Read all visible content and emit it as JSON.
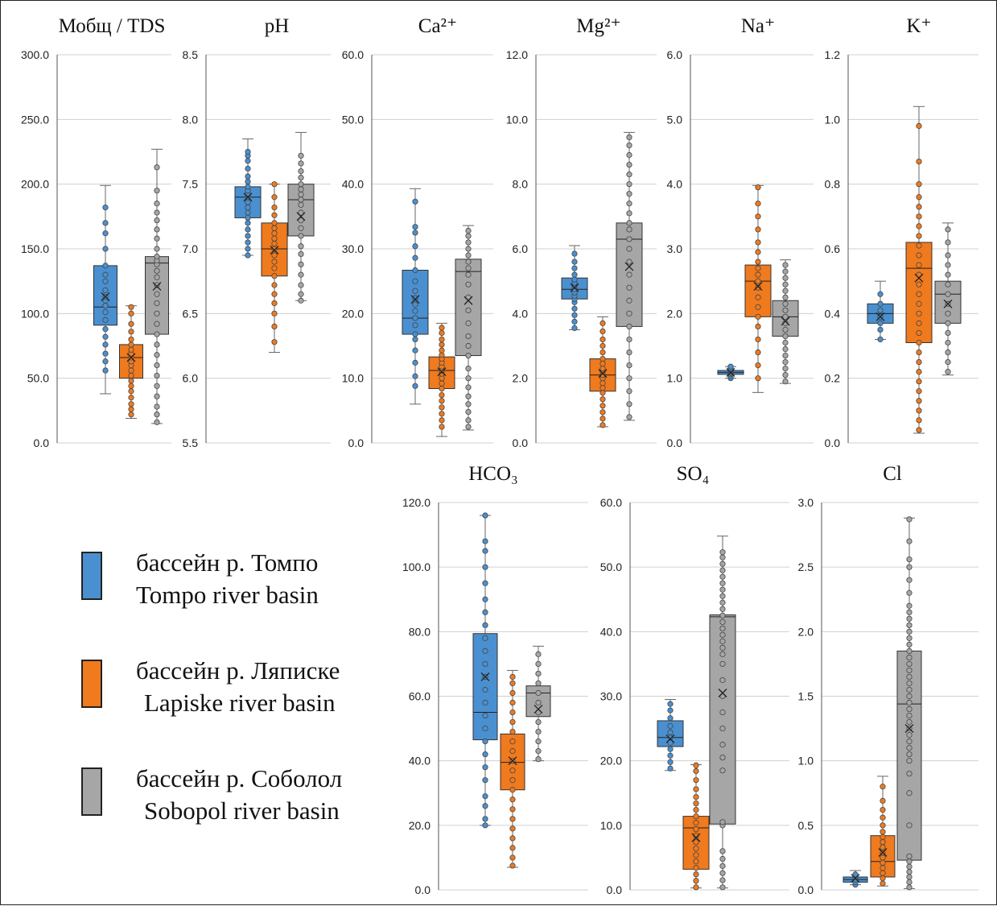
{
  "colors": {
    "tompo": "#4a90d0",
    "lapiske": "#f07a1e",
    "sobopol": "#a6a6a6"
  },
  "legend": [
    {
      "key": "tompo",
      "ru": "бассейн р. Томпо",
      "en": "Tompo river basin"
    },
    {
      "key": "lapiske",
      "ru": "бассейн р. Ляписке",
      "en": "Lapiske river basin"
    },
    {
      "key": "sobopol",
      "ru": "бассейн р. Соболол",
      "en": "Sobopol river basin"
    }
  ],
  "chart_data": [
    {
      "type": "box",
      "title": "Мобщ / TDS",
      "ylim": [
        0,
        300
      ],
      "ticks": [
        "0.0",
        "50.0",
        "100.0",
        "150.0",
        "200.0",
        "250.0",
        "300.0"
      ],
      "series": [
        {
          "key": "tompo",
          "min": 38,
          "q1": 91,
          "median": 105,
          "q3": 137,
          "max": 199,
          "mean": 113,
          "points": [
            56,
            63,
            69,
            76,
            82,
            88,
            95,
            101,
            106,
            110,
            113,
            118,
            125,
            130,
            137,
            150,
            162,
            170,
            182
          ]
        },
        {
          "key": "lapiske",
          "min": 19,
          "q1": 50,
          "median": 66,
          "q3": 76,
          "max": 106,
          "mean": 66,
          "points": [
            22,
            26,
            30,
            35,
            40,
            44,
            48,
            52,
            56,
            60,
            63,
            66,
            69,
            72,
            76,
            80,
            86,
            92,
            100,
            105
          ]
        },
        {
          "key": "sobopol",
          "min": 15,
          "q1": 84,
          "median": 139,
          "q3": 144,
          "max": 227,
          "mean": 121,
          "points": [
            16,
            22,
            28,
            36,
            44,
            52,
            60,
            68,
            76,
            84,
            92,
            100,
            108,
            115,
            122,
            128,
            133,
            138,
            141,
            144,
            150,
            158,
            165,
            172,
            178,
            185,
            195,
            213
          ]
        }
      ]
    },
    {
      "type": "box",
      "title": "pH",
      "ylim": [
        5.5,
        8.5
      ],
      "ticks": [
        "5.5",
        "6.0",
        "6.5",
        "7.0",
        "7.5",
        "8.0",
        "8.5"
      ],
      "series": [
        {
          "key": "tompo",
          "min": 6.95,
          "q1": 7.24,
          "median": 7.4,
          "q3": 7.48,
          "max": 7.85,
          "mean": 7.4,
          "points": [
            6.95,
            7.0,
            7.05,
            7.1,
            7.15,
            7.2,
            7.24,
            7.28,
            7.32,
            7.36,
            7.4,
            7.42,
            7.45,
            7.48,
            7.52,
            7.56,
            7.62,
            7.68,
            7.72,
            7.75
          ]
        },
        {
          "key": "lapiske",
          "min": 6.2,
          "q1": 6.79,
          "median": 7.0,
          "q3": 7.2,
          "max": 7.5,
          "mean": 6.99,
          "points": [
            6.28,
            6.4,
            6.5,
            6.58,
            6.65,
            6.72,
            6.79,
            6.85,
            6.9,
            6.95,
            7.0,
            7.04,
            7.08,
            7.12,
            7.16,
            7.2,
            7.26,
            7.32,
            7.4,
            7.5
          ]
        },
        {
          "key": "sobopol",
          "min": 6.6,
          "q1": 7.1,
          "median": 7.38,
          "q3": 7.5,
          "max": 7.9,
          "mean": 7.25,
          "points": [
            6.6,
            6.65,
            6.72,
            6.8,
            6.88,
            6.96,
            7.02,
            7.1,
            7.16,
            7.22,
            7.28,
            7.34,
            7.38,
            7.42,
            7.46,
            7.5,
            7.55,
            7.6,
            7.66,
            7.72
          ]
        }
      ]
    },
    {
      "type": "box",
      "title": "Ca²⁺",
      "ylim": [
        0,
        60
      ],
      "ticks": [
        "0.0",
        "10.0",
        "20.0",
        "30.0",
        "40.0",
        "50.0",
        "60.0"
      ],
      "series": [
        {
          "key": "tompo",
          "min": 6,
          "q1": 16.8,
          "median": 19.3,
          "q3": 26.7,
          "max": 39.3,
          "mean": 22.2,
          "points": [
            8.8,
            10.3,
            12.4,
            14.3,
            16.0,
            16.8,
            18.2,
            19.3,
            20.4,
            21.4,
            22.4,
            23.5,
            25.0,
            26.7,
            28.6,
            30.4,
            32.5,
            33.4,
            37.3
          ]
        },
        {
          "key": "lapiske",
          "min": 1,
          "q1": 8.4,
          "median": 11.2,
          "q3": 13.3,
          "max": 18.5,
          "mean": 11.0,
          "points": [
            2.5,
            3.5,
            4.5,
            5.5,
            6.5,
            7.4,
            8.4,
            9.2,
            10.0,
            10.7,
            11.2,
            11.8,
            12.4,
            13.0,
            13.6,
            14.3,
            15.2,
            16.0,
            17.0,
            17.8
          ]
        },
        {
          "key": "sobopol",
          "min": 2,
          "q1": 13.5,
          "median": 26.5,
          "q3": 28.4,
          "max": 33.6,
          "mean": 22.0,
          "points": [
            2.5,
            3.5,
            4.8,
            6.0,
            7.2,
            8.6,
            10.0,
            11.5,
            13.5,
            15.0,
            16.5,
            18.5,
            20.5,
            22.5,
            24.5,
            26.0,
            27.0,
            28.0,
            29.0,
            30.0,
            31.0,
            32.0,
            32.8
          ]
        }
      ]
    },
    {
      "type": "box",
      "title": "Mg²⁺",
      "ylim": [
        0,
        12
      ],
      "ticks": [
        "0.0",
        "2.0",
        "4.0",
        "6.0",
        "8.0",
        "10.0",
        "12.0"
      ],
      "series": [
        {
          "key": "tompo",
          "min": 3.5,
          "q1": 4.45,
          "median": 4.75,
          "q3": 5.1,
          "max": 6.1,
          "mean": 4.8,
          "points": [
            3.55,
            3.75,
            3.95,
            4.15,
            4.35,
            4.45,
            4.55,
            4.65,
            4.75,
            4.85,
            4.95,
            5.05,
            5.2,
            5.4,
            5.6,
            5.85
          ]
        },
        {
          "key": "lapiske",
          "min": 0.5,
          "q1": 1.6,
          "median": 2.1,
          "q3": 2.6,
          "max": 3.9,
          "mean": 2.15,
          "points": [
            0.55,
            0.75,
            0.95,
            1.15,
            1.35,
            1.55,
            1.7,
            1.85,
            2.0,
            2.1,
            2.2,
            2.3,
            2.45,
            2.6,
            2.8,
            3.0,
            3.2,
            3.45,
            3.7
          ]
        },
        {
          "key": "sobopol",
          "min": 0.7,
          "q1": 3.6,
          "median": 6.3,
          "q3": 6.8,
          "max": 9.6,
          "mean": 5.45,
          "points": [
            0.8,
            1.2,
            1.6,
            2.0,
            2.4,
            2.8,
            3.2,
            3.6,
            4.0,
            4.4,
            4.8,
            5.2,
            5.6,
            6.0,
            6.3,
            6.6,
            6.8,
            7.1,
            7.4,
            7.7,
            8.0,
            8.3,
            8.6,
            8.9,
            9.2,
            9.45
          ]
        }
      ]
    },
    {
      "type": "box",
      "title": "Na⁺",
      "ylim": [
        0,
        6
      ],
      "ticks": [
        "0.0",
        "1.0",
        "2.0",
        "3.0",
        "4.0",
        "5.0",
        "6.0"
      ],
      "series": [
        {
          "key": "tompo",
          "min": 1.0,
          "q1": 1.06,
          "median": 1.09,
          "q3": 1.12,
          "max": 1.18,
          "mean": 1.09,
          "points": [
            1.0,
            1.03,
            1.06,
            1.08,
            1.1,
            1.12,
            1.15,
            1.18
          ]
        },
        {
          "key": "lapiske",
          "min": 0.78,
          "q1": 1.95,
          "median": 2.5,
          "q3": 2.75,
          "max": 3.98,
          "mean": 2.42,
          "points": [
            1.0,
            1.2,
            1.4,
            1.6,
            1.8,
            1.95,
            2.1,
            2.25,
            2.4,
            2.5,
            2.6,
            2.7,
            2.8,
            2.95,
            3.1,
            3.3,
            3.5,
            3.7,
            3.95
          ]
        },
        {
          "key": "sobopol",
          "min": 0.92,
          "q1": 1.65,
          "median": 1.95,
          "q3": 2.2,
          "max": 2.83,
          "mean": 1.88,
          "points": [
            0.95,
            1.05,
            1.15,
            1.25,
            1.35,
            1.45,
            1.55,
            1.65,
            1.75,
            1.85,
            1.95,
            2.05,
            2.15,
            2.25,
            2.35,
            2.45,
            2.55,
            2.65,
            2.75
          ]
        }
      ]
    },
    {
      "type": "box",
      "title": "K⁺",
      "ylim": [
        0,
        1.2
      ],
      "ticks": [
        "0.0",
        "0.2",
        "0.4",
        "0.6",
        "0.8",
        "1.0",
        "1.2"
      ],
      "series": [
        {
          "key": "tompo",
          "min": 0.32,
          "q1": 0.37,
          "median": 0.4,
          "q3": 0.43,
          "max": 0.5,
          "mean": 0.39,
          "points": [
            0.32,
            0.35,
            0.37,
            0.39,
            0.41,
            0.43,
            0.46
          ]
        },
        {
          "key": "lapiske",
          "min": 0.03,
          "q1": 0.31,
          "median": 0.54,
          "q3": 0.62,
          "max": 1.04,
          "mean": 0.51,
          "points": [
            0.04,
            0.07,
            0.1,
            0.13,
            0.16,
            0.19,
            0.22,
            0.25,
            0.28,
            0.31,
            0.34,
            0.37,
            0.4,
            0.43,
            0.46,
            0.49,
            0.52,
            0.55,
            0.58,
            0.61,
            0.64,
            0.67,
            0.7,
            0.73,
            0.76,
            0.8,
            0.87,
            0.98
          ]
        },
        {
          "key": "sobopol",
          "min": 0.21,
          "q1": 0.37,
          "median": 0.46,
          "q3": 0.5,
          "max": 0.68,
          "mean": 0.43,
          "points": [
            0.22,
            0.25,
            0.28,
            0.31,
            0.34,
            0.37,
            0.4,
            0.43,
            0.46,
            0.49,
            0.52,
            0.55,
            0.58,
            0.62,
            0.66
          ]
        }
      ]
    },
    {
      "type": "box",
      "title": "HCO₃",
      "ylim": [
        0,
        120
      ],
      "ticks": [
        "0.0",
        "20.0",
        "40.0",
        "60.0",
        "80.0",
        "100.0",
        "120.0"
      ],
      "series": [
        {
          "key": "tompo",
          "min": 20,
          "q1": 46.5,
          "median": 55,
          "q3": 79.4,
          "max": 116,
          "mean": 66,
          "points": [
            20,
            22,
            26,
            29,
            34,
            38,
            42,
            46,
            50,
            54,
            58,
            62,
            66,
            70,
            74,
            78,
            82,
            86,
            90,
            95,
            100,
            105,
            108,
            116
          ]
        },
        {
          "key": "lapiske",
          "min": 7,
          "q1": 31,
          "median": 39.5,
          "q3": 48.3,
          "max": 68,
          "mean": 40,
          "points": [
            7.5,
            10,
            13,
            16,
            19,
            22,
            25,
            28,
            31,
            34,
            37,
            40,
            43,
            46,
            49,
            52,
            55,
            58,
            61,
            64,
            66
          ]
        },
        {
          "key": "sobopol",
          "min": 40,
          "q1": 53.7,
          "median": 61,
          "q3": 63.2,
          "max": 75.5,
          "mean": 56,
          "points": [
            40.5,
            43,
            46,
            49,
            52,
            55,
            58,
            61,
            64,
            67,
            70,
            73
          ]
        }
      ]
    },
    {
      "type": "box",
      "title": "SO₄",
      "ylim": [
        0,
        60
      ],
      "ticks": [
        "0.0",
        "10.0",
        "20.0",
        "30.0",
        "40.0",
        "50.0",
        "60.0"
      ],
      "series": [
        {
          "key": "tompo",
          "min": 18.5,
          "q1": 22.2,
          "median": 23.6,
          "q3": 26.2,
          "max": 29.5,
          "mean": 23.4,
          "points": [
            18.8,
            19.8,
            20.8,
            21.8,
            22.8,
            23.6,
            24.4,
            25.4,
            26.6,
            27.8,
            28.8
          ]
        },
        {
          "key": "lapiske",
          "min": 0.3,
          "q1": 3.2,
          "median": 9.6,
          "q3": 11.4,
          "max": 19.4,
          "mean": 8.1,
          "points": [
            0.4,
            1.4,
            2.4,
            3.4,
            4.4,
            5.4,
            6.4,
            7.4,
            8.4,
            9.4,
            10.4,
            11.4,
            12.4,
            13.4,
            14.4,
            15.6,
            17.0,
            18.4,
            19.3
          ]
        },
        {
          "key": "sobopol",
          "min": 0.3,
          "q1": 10.2,
          "median": 42.3,
          "q3": 42.6,
          "max": 54.8,
          "mean": 30.5,
          "points": [
            0.4,
            1.5,
            2.6,
            3.7,
            4.8,
            6,
            10,
            10.5,
            18.5,
            20.5,
            22.5,
            25,
            27.5,
            30,
            32.5,
            35,
            36.5,
            37.5,
            38.5,
            39.5,
            40.5,
            41.5,
            42.5,
            43.5,
            44.5,
            45.5,
            46.5,
            47.5,
            48.5,
            49.5,
            50.5,
            51.5,
            52.3
          ]
        }
      ]
    },
    {
      "type": "box",
      "title": "Cl",
      "ylim": [
        0,
        3
      ],
      "ticks": [
        "0.0",
        "0.5",
        "1.0",
        "1.5",
        "2.0",
        "2.5",
        "3.0"
      ],
      "series": [
        {
          "key": "tompo",
          "min": 0.04,
          "q1": 0.06,
          "median": 0.08,
          "q3": 0.1,
          "max": 0.15,
          "mean": 0.09,
          "points": [
            0.04,
            0.06,
            0.08,
            0.1,
            0.12
          ]
        },
        {
          "key": "lapiske",
          "min": 0.03,
          "q1": 0.1,
          "median": 0.22,
          "q3": 0.42,
          "max": 0.88,
          "mean": 0.29,
          "points": [
            0.05,
            0.09,
            0.13,
            0.17,
            0.21,
            0.25,
            0.29,
            0.33,
            0.37,
            0.41,
            0.45,
            0.5,
            0.56,
            0.62,
            0.69,
            0.8
          ]
        },
        {
          "key": "sobopol",
          "min": 0.01,
          "q1": 0.23,
          "median": 1.44,
          "q3": 1.85,
          "max": 2.88,
          "mean": 1.25,
          "points": [
            0.02,
            0.06,
            0.1,
            0.14,
            0.18,
            0.22,
            0.26,
            0.5,
            0.75,
            0.9,
            1.0,
            1.05,
            1.1,
            1.15,
            1.2,
            1.25,
            1.3,
            1.35,
            1.4,
            1.45,
            1.5,
            1.55,
            1.6,
            1.65,
            1.7,
            1.75,
            1.8,
            1.85,
            1.9,
            1.95,
            2.0,
            2.05,
            2.1,
            2.15,
            2.2,
            2.3,
            2.4,
            2.5,
            2.56,
            2.7,
            2.87
          ]
        }
      ]
    }
  ]
}
